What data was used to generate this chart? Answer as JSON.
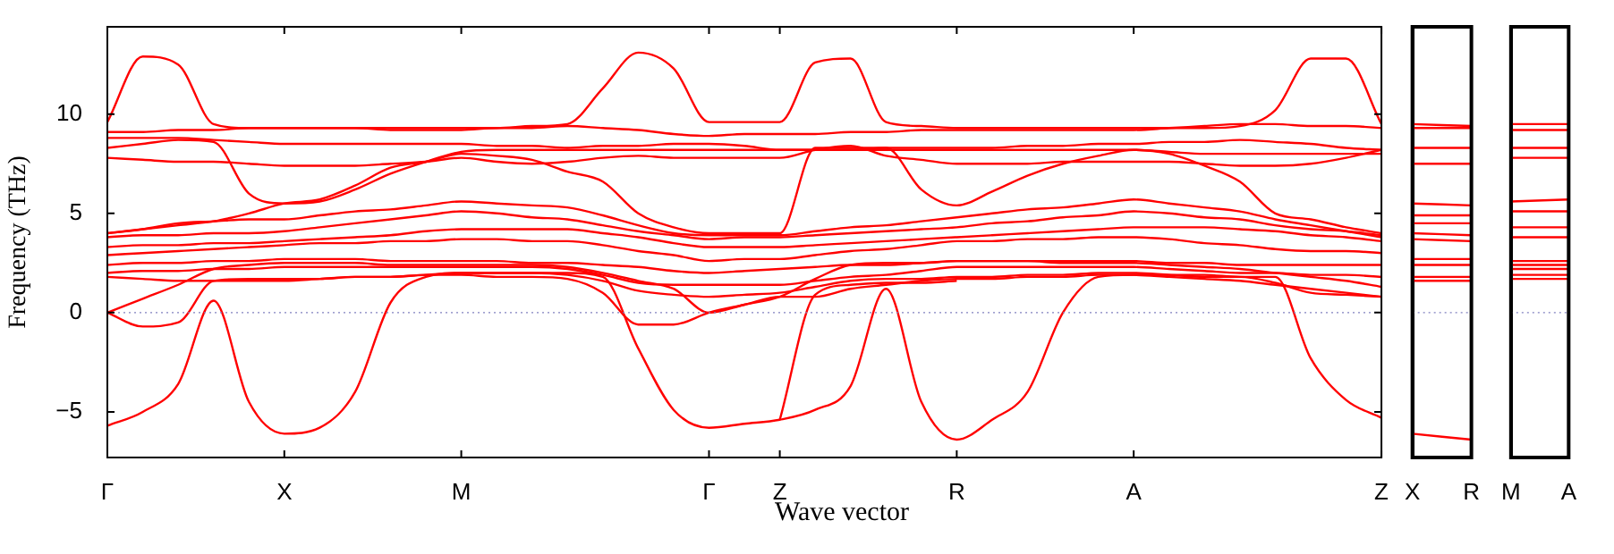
{
  "chart_data": [
    {
      "type": "line",
      "xlabel": "Wave vector",
      "ylabel": "Frequency (THz)",
      "ylim": [
        -7.3,
        14.4
      ],
      "categories": [
        "Γ",
        null,
        null,
        null,
        null,
        "X",
        null,
        null,
        null,
        null,
        "M",
        null,
        null,
        null,
        null,
        null,
        null,
        "Γ",
        null,
        "Z",
        null,
        null,
        null,
        null,
        "R",
        null,
        null,
        null,
        null,
        "A",
        null,
        null,
        null,
        null,
        null,
        null,
        "Z"
      ],
      "yticks": [
        {
          "value": -5,
          "label": "−5"
        },
        0,
        5,
        10
      ],
      "ref_lines": [
        {
          "axis": "y",
          "value": 0,
          "color": "#8080c0",
          "line_style": "dotted"
        }
      ],
      "series": [
        {
          "color": "#ff0000",
          "values": [
            9.6,
            12.9,
            12.5,
            9.5,
            9.3,
            9.3,
            9.3,
            9.3,
            9.3,
            9.3,
            9.3,
            9.3,
            9.4,
            9.5,
            11.3,
            13.1,
            12.3,
            9.6,
            9.6,
            9.6,
            12.6,
            12.8,
            9.6,
            9.4,
            9.3,
            9.3,
            9.3,
            9.3,
            9.3,
            9.3,
            9.3,
            9.3,
            9.4,
            10.2,
            12.8,
            12.8,
            9.5
          ]
        },
        {
          "color": "#ff0000",
          "values": [
            9.1,
            9.1,
            9.2,
            9.2,
            9.3,
            9.3,
            9.3,
            9.3,
            9.2,
            9.2,
            9.2,
            9.3,
            9.3,
            9.4,
            9.3,
            9.2,
            9.0,
            8.9,
            9.0,
            9.0,
            9.0,
            9.1,
            9.1,
            9.2,
            9.2,
            9.2,
            9.2,
            9.2,
            9.2,
            9.2,
            9.3,
            9.4,
            9.5,
            9.5,
            9.4,
            9.4,
            9.3
          ]
        },
        {
          "color": "#ff0000",
          "values": [
            8.8,
            8.8,
            8.8,
            8.7,
            8.6,
            8.5,
            8.5,
            8.5,
            8.5,
            8.5,
            8.5,
            8.4,
            8.4,
            8.3,
            8.4,
            8.4,
            8.5,
            8.5,
            8.4,
            8.2,
            8.2,
            8.2,
            8.3,
            8.3,
            8.3,
            8.3,
            8.4,
            8.4,
            8.5,
            8.5,
            8.6,
            8.6,
            8.7,
            8.6,
            8.5,
            8.3,
            8.2
          ]
        },
        {
          "color": "#ff0000",
          "values": [
            8.3,
            8.5,
            8.7,
            8.6,
            6.0,
            5.5,
            5.6,
            6.2,
            7.0,
            7.6,
            8.1,
            8.2,
            8.2,
            8.2,
            8.2,
            8.2,
            8.2,
            8.2,
            8.2,
            8.2,
            8.2,
            8.2,
            8.2,
            8.2,
            8.2,
            8.2,
            8.2,
            8.2,
            8.2,
            8.2,
            8.1,
            8.0,
            8.0,
            8.0,
            8.0,
            8.0,
            8.0
          ]
        },
        {
          "color": "#ff0000",
          "values": [
            7.8,
            7.7,
            7.6,
            7.6,
            7.5,
            7.4,
            7.4,
            7.4,
            7.5,
            7.6,
            7.8,
            7.6,
            7.5,
            7.6,
            7.8,
            7.9,
            7.8,
            7.8,
            7.8,
            7.8,
            8.2,
            8.4,
            7.9,
            7.7,
            7.5,
            7.5,
            7.5,
            7.6,
            7.6,
            7.6,
            7.6,
            7.5,
            7.4,
            7.4,
            7.5,
            7.8,
            8.2
          ]
        },
        {
          "color": "#ff0000",
          "values": [
            4.0,
            4.2,
            4.4,
            4.6,
            5.0,
            5.5,
            5.7,
            6.4,
            7.3,
            7.6,
            8.0,
            7.9,
            7.7,
            7.1,
            6.6,
            5.0,
            4.3,
            4.0,
            4.0,
            4.0,
            8.3,
            8.3,
            8.3,
            6.2,
            5.4,
            6.1,
            6.9,
            7.5,
            7.9,
            8.2,
            8.0,
            7.4,
            6.6,
            5.0,
            4.7,
            4.3,
            4.0
          ]
        },
        {
          "color": "#ff0000",
          "values": [
            4.0,
            4.2,
            4.5,
            4.6,
            4.7,
            4.7,
            4.9,
            5.1,
            5.2,
            5.4,
            5.6,
            5.5,
            5.4,
            5.3,
            4.9,
            4.4,
            4.0,
            3.9,
            3.9,
            3.9,
            4.1,
            4.3,
            4.4,
            4.6,
            4.8,
            5.0,
            5.2,
            5.3,
            5.5,
            5.7,
            5.5,
            5.3,
            5.1,
            4.7,
            4.4,
            4.1,
            3.8
          ]
        },
        {
          "color": "#ff0000",
          "values": [
            3.8,
            3.9,
            3.9,
            4.0,
            4.0,
            4.1,
            4.3,
            4.5,
            4.7,
            4.9,
            5.1,
            5.0,
            4.8,
            4.7,
            4.4,
            4.1,
            3.9,
            3.7,
            3.8,
            3.8,
            3.9,
            4.0,
            4.1,
            4.2,
            4.3,
            4.5,
            4.6,
            4.8,
            4.9,
            5.1,
            5.0,
            4.8,
            4.7,
            4.4,
            4.2,
            4.1,
            3.9
          ]
        },
        {
          "color": "#ff0000",
          "values": [
            3.3,
            3.4,
            3.4,
            3.5,
            3.5,
            3.6,
            3.7,
            3.8,
            3.9,
            4.1,
            4.2,
            4.2,
            4.2,
            4.2,
            4.0,
            3.8,
            3.5,
            3.3,
            3.3,
            3.3,
            3.4,
            3.5,
            3.6,
            3.7,
            3.8,
            3.9,
            4.0,
            4.1,
            4.2,
            4.3,
            4.3,
            4.3,
            4.2,
            4.1,
            3.9,
            3.8,
            3.6
          ]
        },
        {
          "color": "#ff0000",
          "values": [
            2.9,
            3.0,
            3.1,
            3.2,
            3.3,
            3.4,
            3.5,
            3.5,
            3.6,
            3.6,
            3.7,
            3.7,
            3.6,
            3.6,
            3.4,
            3.1,
            2.9,
            2.6,
            2.7,
            2.7,
            2.9,
            3.1,
            3.2,
            3.4,
            3.6,
            3.6,
            3.7,
            3.7,
            3.8,
            3.8,
            3.7,
            3.5,
            3.4,
            3.2,
            3.1,
            3.1,
            3.0
          ]
        },
        {
          "color": "#ff0000",
          "values": [
            2.4,
            2.5,
            2.5,
            2.6,
            2.6,
            2.7,
            2.7,
            2.7,
            2.6,
            2.6,
            2.6,
            2.6,
            2.5,
            2.5,
            2.4,
            2.3,
            2.1,
            2.0,
            2.1,
            2.2,
            2.3,
            2.4,
            2.4,
            2.5,
            2.6,
            2.6,
            2.6,
            2.6,
            2.6,
            2.6,
            2.5,
            2.5,
            2.4,
            2.4,
            2.4,
            2.4,
            2.4
          ]
        },
        {
          "color": "#ff0000",
          "values": [
            2.0,
            2.1,
            2.1,
            2.2,
            2.2,
            2.3,
            2.3,
            2.3,
            2.3,
            2.3,
            2.3,
            2.3,
            2.3,
            2.2,
            1.9,
            1.5,
            1.4,
            1.4,
            1.4,
            1.4,
            1.6,
            1.8,
            1.9,
            2.1,
            2.3,
            2.3,
            2.3,
            2.3,
            2.3,
            2.3,
            2.2,
            2.1,
            2.0,
            2.0,
            1.9,
            1.9,
            1.8
          ]
        },
        {
          "color": "#ff0000",
          "values": [
            1.8,
            1.7,
            1.6,
            1.6,
            1.6,
            1.6,
            1.7,
            1.8,
            1.8,
            1.9,
            2.0,
            2.0,
            2.0,
            1.9,
            1.6,
            1.1,
            0.9,
            0.8,
            0.9,
            1.0,
            1.3,
            1.6,
            1.7,
            1.7,
            1.8,
            1.8,
            1.9,
            1.9,
            2.0,
            2.0,
            1.9,
            1.8,
            1.8,
            1.5,
            1.0,
            0.9,
            0.8
          ]
        },
        {
          "color": "#ff0000",
          "values": [
            0,
            -0.7,
            -0.5,
            1.6,
            1.7,
            1.7,
            1.7,
            1.8,
            1.8,
            1.9,
            1.9,
            1.8,
            1.8,
            1.7,
            1.0,
            -0.6,
            -0.6,
            0,
            0.4,
            0.8,
            0.8,
            1.2,
            1.4,
            1.6,
            1.7,
            1.7,
            1.8,
            1.8,
            1.9,
            1.9,
            1.8,
            1.7,
            1.6,
            1.4,
            1.2,
            1.0,
            0.8
          ]
        },
        {
          "color": "#ff0000",
          "values": [
            0,
            0.7,
            1.4,
            2.2,
            2.4,
            2.5,
            2.5,
            2.5,
            2.4,
            2.4,
            2.4,
            2.4,
            2.4,
            2.3,
            2.0,
            1.6,
            1.2,
            0,
            0.4,
            0.8,
            1.7,
            2.4,
            2.5,
            2.5,
            2.6,
            2.6,
            2.6,
            2.5,
            2.5,
            2.5,
            2.4,
            2.3,
            2.2,
            2.0,
            1.8,
            1.6,
            1.3
          ]
        },
        {
          "color": "#ff0000",
          "values": [
            null,
            null,
            null,
            null,
            null,
            null,
            null,
            null,
            null,
            null,
            null,
            null,
            null,
            null,
            null,
            null,
            null,
            null,
            null,
            -5.4,
            0.9,
            1.4,
            1.5,
            1.5,
            1.6,
            null,
            null,
            null,
            null,
            null,
            null,
            null,
            null,
            null,
            null,
            null,
            null
          ]
        },
        {
          "color": "#ff0000",
          "values": [
            -5.7,
            -5.0,
            -3.6,
            0.6,
            -4.5,
            -6.1,
            -5.8,
            -4.0,
            0.5,
            1.8,
            2.0,
            2.0,
            2.0,
            2.0,
            1.8,
            -1.8,
            -4.9,
            -5.8,
            -5.6,
            -5.4,
            -4.9,
            -3.7,
            1.2,
            -4.5,
            -6.4,
            -5.4,
            -4.0,
            0,
            1.8,
            1.9,
            1.9,
            1.9,
            1.8,
            1.8,
            -2.3,
            -4.4,
            -5.3
          ]
        }
      ]
    },
    {
      "type": "line",
      "tick_labels": "x",
      "ylim": [
        -7.3,
        14.4
      ],
      "categories": [
        "X",
        "R"
      ],
      "ref_lines": [
        {
          "axis": "y",
          "value": 0,
          "color": "#8080c0",
          "line_style": "dotted"
        }
      ],
      "series": [
        {
          "color": "#ff0000",
          "values": [
            9.5,
            9.4
          ]
        },
        {
          "color": "#ff0000",
          "values": [
            9.3,
            9.3
          ]
        },
        {
          "color": "#ff0000",
          "values": [
            8.3,
            8.3
          ]
        },
        {
          "color": "#ff0000",
          "values": [
            7.5,
            7.5
          ]
        },
        {
          "color": "#ff0000",
          "values": [
            5.5,
            5.4
          ]
        },
        {
          "color": "#ff0000",
          "values": [
            4.9,
            4.9
          ]
        },
        {
          "color": "#ff0000",
          "values": [
            4.5,
            4.5
          ]
        },
        {
          "color": "#ff0000",
          "values": [
            4.0,
            3.9
          ]
        },
        {
          "color": "#ff0000",
          "values": [
            3.7,
            3.6
          ]
        },
        {
          "color": "#ff0000",
          "values": [
            2.7,
            2.7
          ]
        },
        {
          "color": "#ff0000",
          "values": [
            2.4,
            2.4
          ]
        },
        {
          "color": "#ff0000",
          "values": [
            1.8,
            1.8
          ]
        },
        {
          "color": "#ff0000",
          "values": [
            1.6,
            1.6
          ]
        },
        {
          "color": "#ff0000",
          "values": [
            -6.1,
            -6.4
          ]
        }
      ]
    },
    {
      "type": "line",
      "tick_labels": "x",
      "ylim": [
        -7.3,
        14.4
      ],
      "categories": [
        "M",
        "A"
      ],
      "ref_lines": [
        {
          "axis": "y",
          "value": 0,
          "color": "#8080c0",
          "line_style": "dotted"
        }
      ],
      "series": [
        {
          "color": "#ff0000",
          "values": [
            9.5,
            9.5
          ]
        },
        {
          "color": "#ff0000",
          "values": [
            9.2,
            9.2
          ]
        },
        {
          "color": "#ff0000",
          "values": [
            8.3,
            8.3
          ]
        },
        {
          "color": "#ff0000",
          "values": [
            7.8,
            7.8
          ]
        },
        {
          "color": "#ff0000",
          "values": [
            5.6,
            5.7
          ]
        },
        {
          "color": "#ff0000",
          "values": [
            5.1,
            5.1
          ]
        },
        {
          "color": "#ff0000",
          "values": [
            4.3,
            4.3
          ]
        },
        {
          "color": "#ff0000",
          "values": [
            3.8,
            3.8
          ]
        },
        {
          "color": "#ff0000",
          "values": [
            2.6,
            2.6
          ]
        },
        {
          "color": "#ff0000",
          "values": [
            2.4,
            2.4
          ]
        },
        {
          "color": "#ff0000",
          "values": [
            2.2,
            2.2
          ]
        },
        {
          "color": "#ff0000",
          "values": [
            1.9,
            1.9
          ]
        },
        {
          "color": "#ff0000",
          "values": [
            1.7,
            1.7
          ]
        }
      ]
    }
  ]
}
